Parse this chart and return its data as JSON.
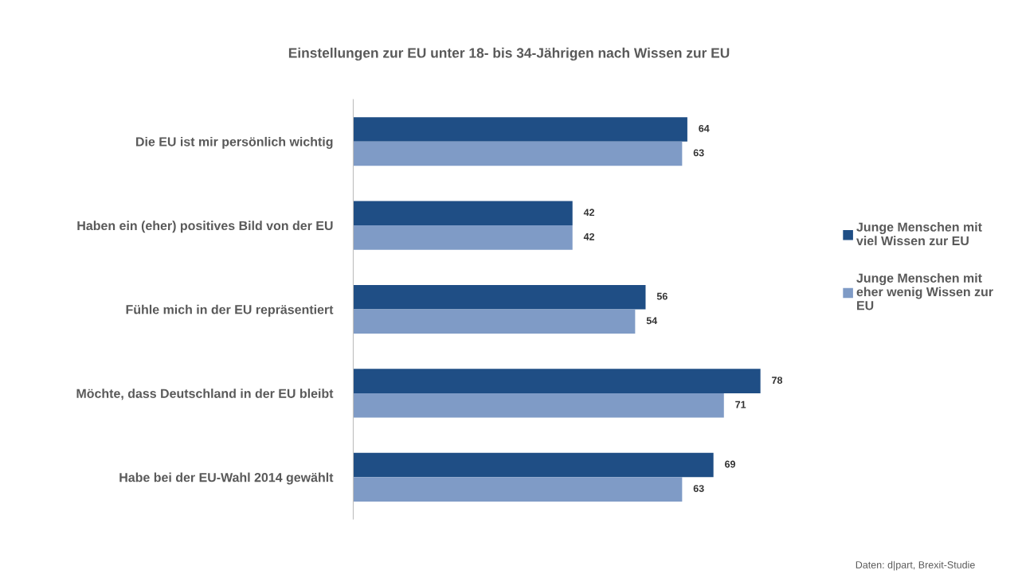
{
  "chart_data": {
    "type": "bar",
    "orientation": "horizontal",
    "title": "Einstellungen zur EU unter 18- bis 34-Jährigen nach Wissen zur EU",
    "categories": [
      "Die EU ist mir persönlich wichtig",
      "Haben ein (eher) positives Bild von der EU",
      "Fühle mich in der EU repräsentiert",
      "Möchte, dass Deutschland in der EU bleibt",
      "Habe bei der EU-Wahl 2014 gewählt"
    ],
    "series": [
      {
        "name": "Junge Menschen mit\nviel Wissen zur EU",
        "color": "#1f4e85",
        "values": [
          64,
          42,
          56,
          78,
          69
        ]
      },
      {
        "name": "Junge Menschen mit\neher wenig Wissen zur\nEU",
        "color": "#7f9bc6",
        "values": [
          63,
          42,
          54,
          71,
          63
        ]
      }
    ],
    "data_labels": true,
    "grid": false,
    "legend": "right",
    "tick_labels": "y",
    "annotations": [
      "Daten: d|part, Brexit-Studie"
    ]
  }
}
